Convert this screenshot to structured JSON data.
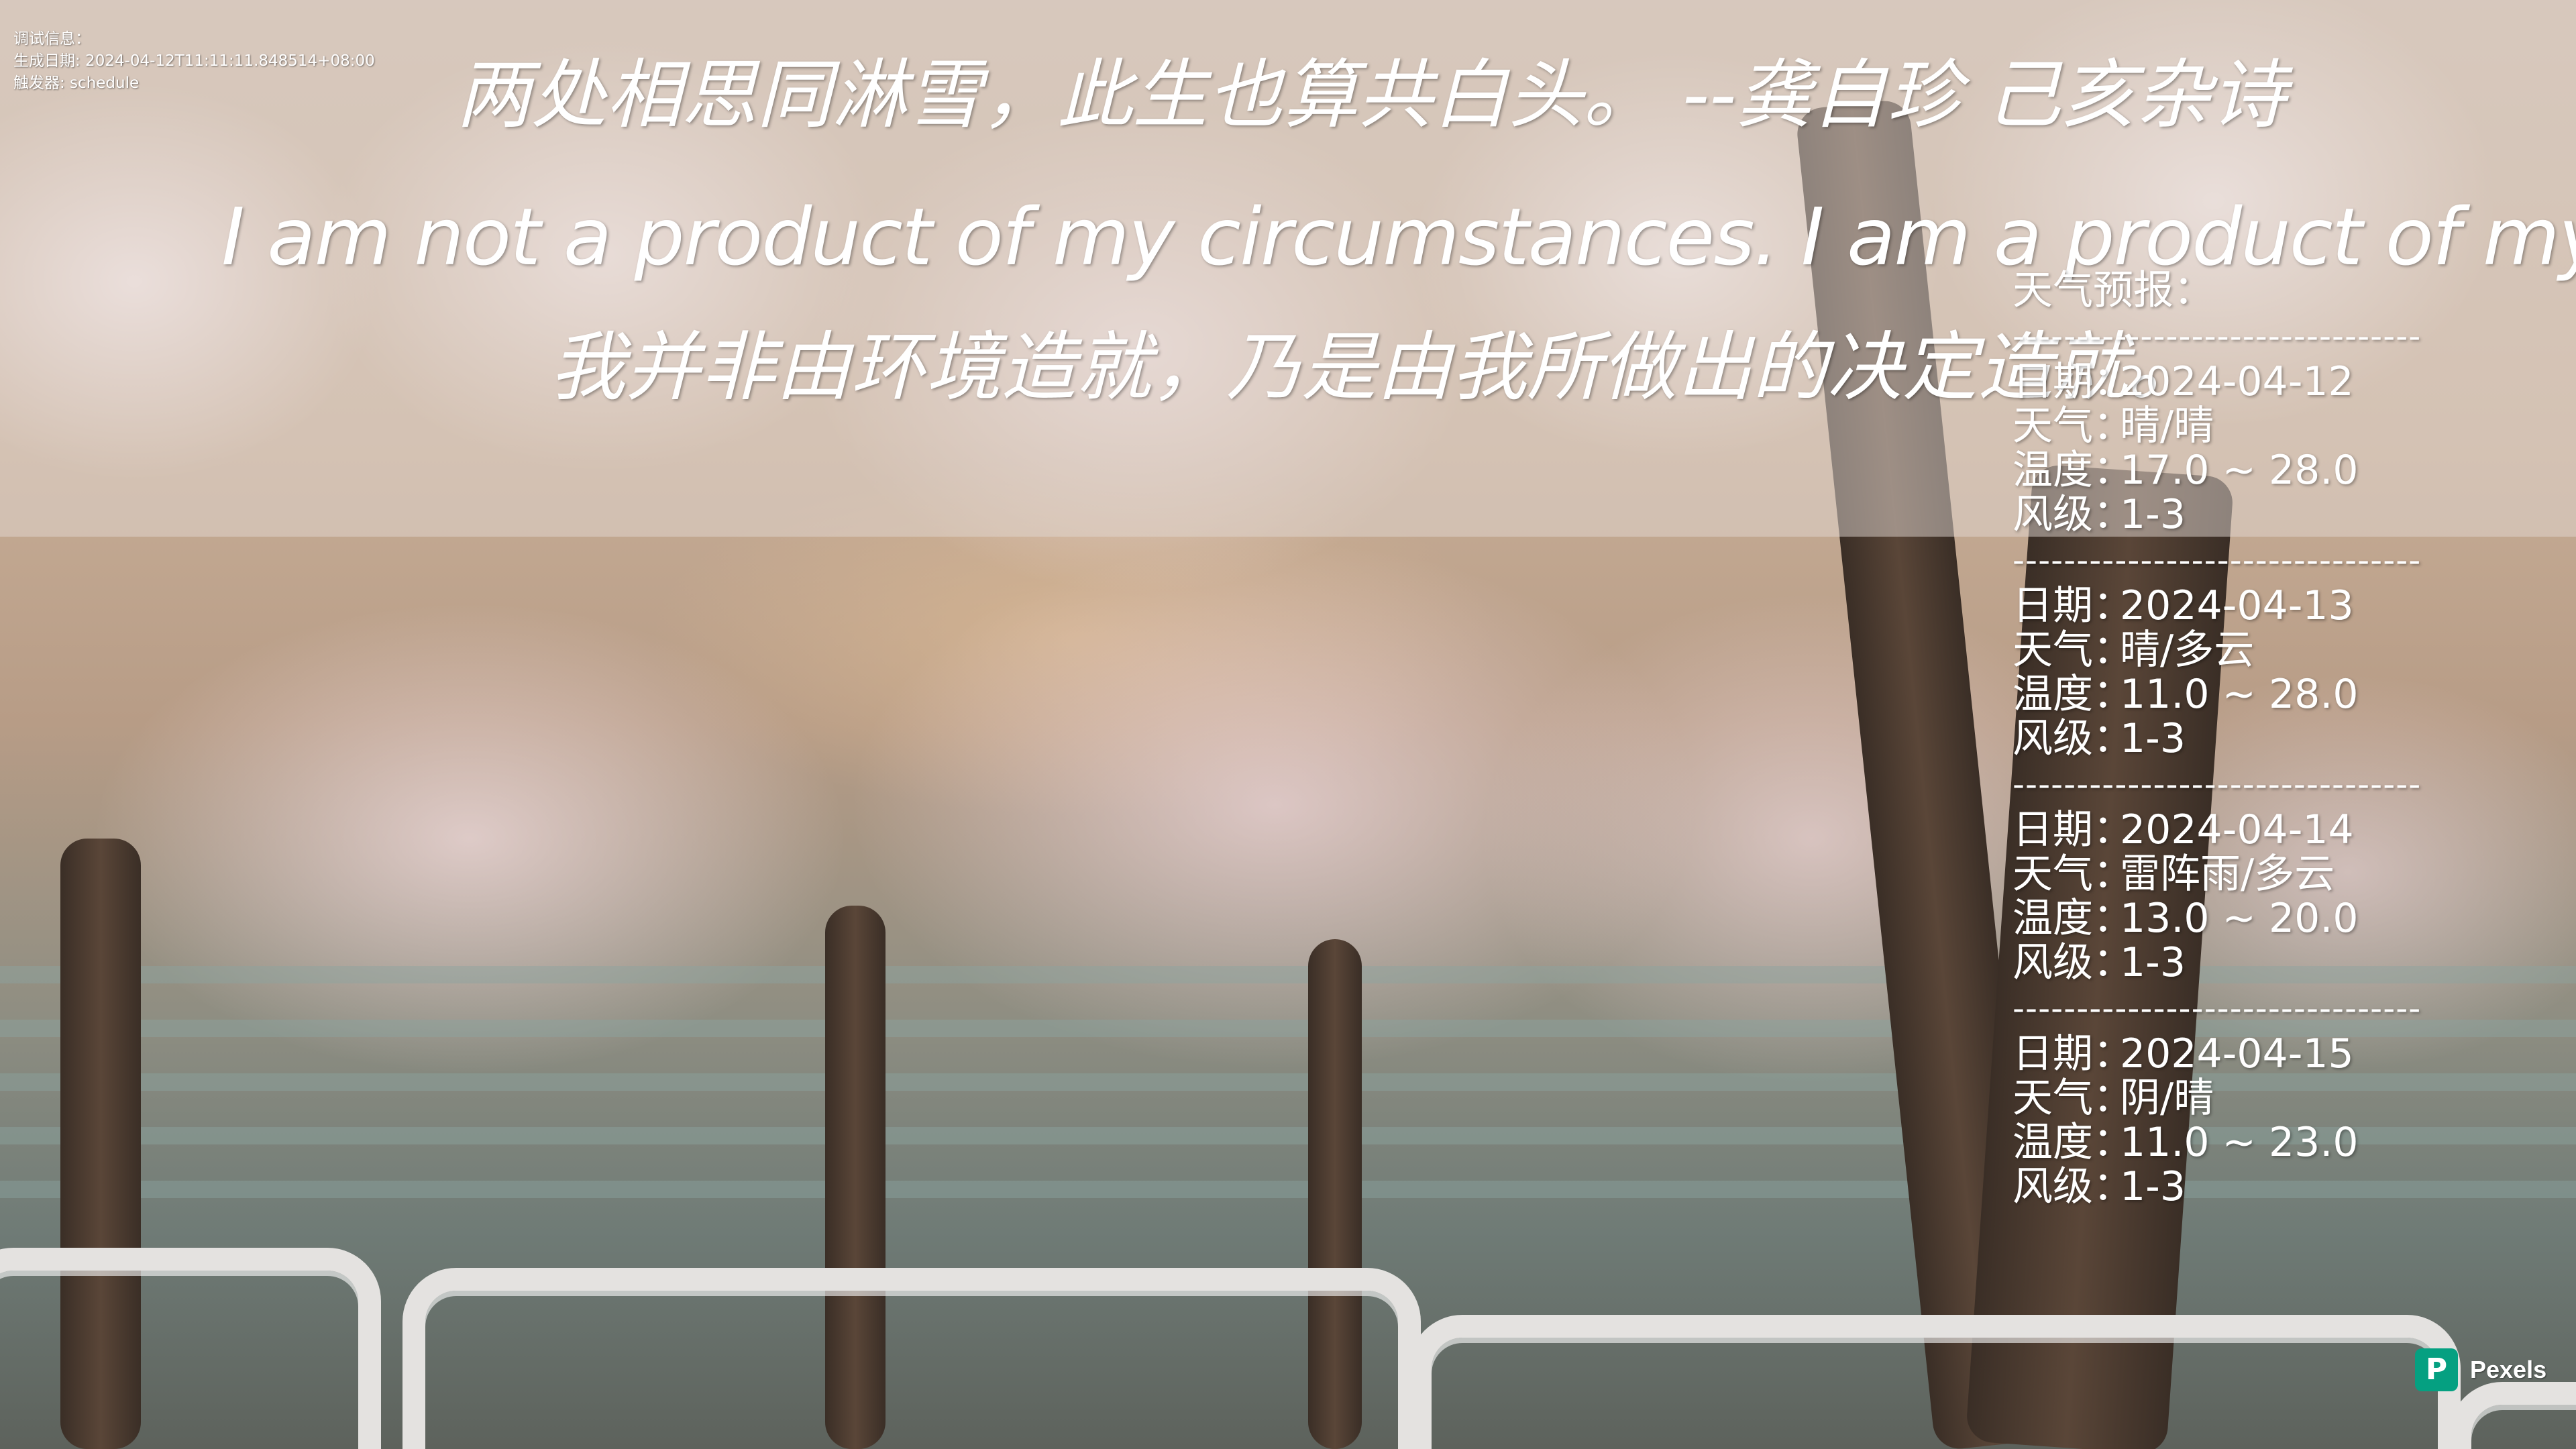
{
  "debug": {
    "line1": "调试信息：",
    "line2": "生成日期: 2024-04-12T11:11:11.848514+08:00",
    "line3": "触发器: schedule"
  },
  "quotes": {
    "chinese_poem": "两处相思同淋雪，此生也算共白头。  --龚自珍 己亥杂诗",
    "english": "I am not a product of my circumstances. I am a product of my decisions.",
    "translation": "我并非由环境造就，乃是由我所做出的决定造就。"
  },
  "weather": {
    "title": "天气预报：",
    "divider": "--------------------------------",
    "labels": {
      "date": "日期：",
      "weather": "天气：",
      "temperature": "温度：",
      "wind": "风级："
    },
    "days": [
      {
        "date": "2024-04-12",
        "weather": "晴/晴",
        "temperature": "17.0 ~ 28.0",
        "wind": "1-3"
      },
      {
        "date": "2024-04-13",
        "weather": "晴/多云",
        "temperature": "11.0 ~ 28.0",
        "wind": "1-3"
      },
      {
        "date": "2024-04-14",
        "weather": "雷阵雨/多云",
        "temperature": "13.0 ~ 20.0",
        "wind": "1-3"
      },
      {
        "date": "2024-04-15",
        "weather": "阴/晴",
        "temperature": "11.0 ~ 23.0",
        "wind": "1-3"
      }
    ]
  },
  "watermark": {
    "logo_letter": "P",
    "name": "Pexels",
    "logo_color": "#05a081"
  }
}
